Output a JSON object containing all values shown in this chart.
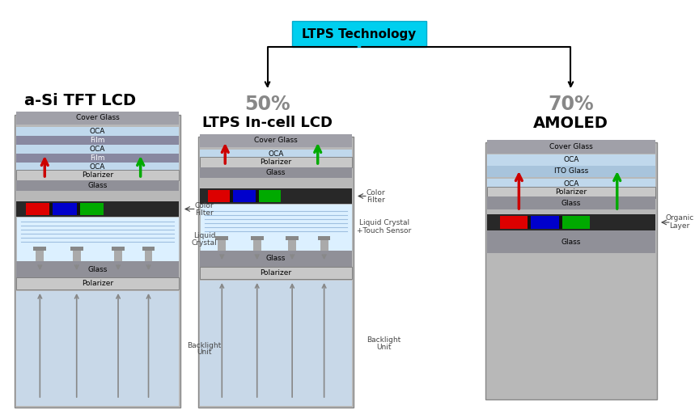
{
  "title_box": "LTPS Technology",
  "title_box_color": "#00CFEF",
  "title_box_text_color": "black",
  "percent_left": "50%",
  "percent_right": "70%",
  "percent_color": "#888888",
  "col1_title": "a-Si TFT LCD",
  "col2_title": "LTPS In-cell LCD",
  "col3_title": "AMOLED",
  "col_title_color": "black",
  "bg_color": "white",
  "diagram_bg": "#B8B8B8",
  "backlight_bg": "#C8D8E8",
  "liquid_crystal_color": "#DCF0FF",
  "cover_glass_color": "#A0A0A8",
  "oca_color": "#C0D8EC",
  "film_color": "#8888A0",
  "polarizer_color": "#C8C8C8",
  "glass_dark_color": "#909098",
  "ito_glass_color": "#A8C4DC",
  "red_pixel": "#DD0000",
  "blue_pixel": "#0000CC",
  "green_pixel": "#00AA00",
  "black_spacer": "#111111",
  "arrow_red": "#CC0000",
  "arrow_green": "#00AA00",
  "arrow_gray": "#888888",
  "label_color": "#444444"
}
